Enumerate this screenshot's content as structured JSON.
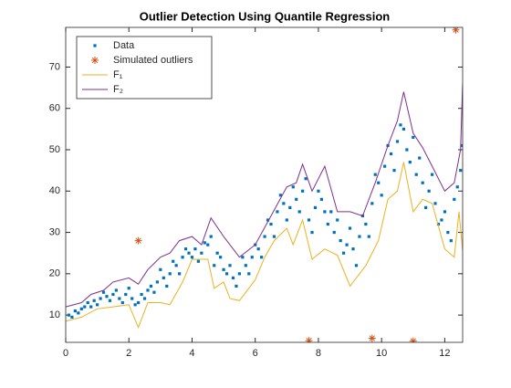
{
  "chart_data": {
    "type": "scatter",
    "title": "Outlier Detection Using Quantile Regression",
    "xlim": [
      0,
      12.566
    ],
    "ylim": [
      3.4,
      79.6
    ],
    "xticks": [
      0,
      2,
      4,
      6,
      8,
      10,
      12
    ],
    "yticks": [
      10,
      20,
      30,
      40,
      50,
      60,
      70
    ],
    "grid": false,
    "legend": "northwest",
    "series": [
      {
        "name": "Data",
        "mode": "marker",
        "marker": "square",
        "color": "#0072bd",
        "x": [
          0.1,
          0.3,
          0.5,
          0.7,
          0.9,
          1.1,
          1.3,
          1.5,
          1.7,
          1.9,
          2.1,
          2.3,
          2.5,
          2.7,
          2.9,
          3.1,
          3.3,
          3.5,
          3.7,
          3.9,
          4.1,
          4.3,
          4.5,
          4.7,
          4.9,
          5.1,
          5.3,
          5.5,
          5.7,
          5.9,
          6.1,
          6.3,
          6.5,
          6.7,
          6.9,
          7.1,
          7.3,
          7.5,
          7.7,
          7.9,
          8.1,
          8.3,
          8.5,
          8.7,
          8.9,
          9.1,
          9.3,
          9.5,
          9.7,
          9.9,
          10.1,
          10.3,
          10.5,
          10.7,
          10.9,
          11.1,
          11.3,
          11.5,
          11.7,
          11.9,
          12.1,
          12.3,
          12.5,
          0.2,
          0.4,
          0.6,
          0.8,
          1.0,
          1.2,
          1.4,
          1.6,
          1.8,
          2.0,
          2.2,
          2.4,
          2.6,
          2.8,
          3.0,
          3.2,
          3.4,
          3.6,
          3.8,
          4.0,
          4.2,
          4.4,
          4.6,
          4.8,
          5.0,
          5.2,
          5.4,
          5.6,
          5.8,
          6.0,
          6.2,
          6.4,
          6.6,
          6.8,
          7.0,
          7.2,
          7.4,
          7.6,
          7.8,
          8.0,
          8.2,
          8.4,
          8.6,
          8.8,
          9.0,
          9.2,
          9.4,
          9.6,
          9.8,
          10.0,
          10.2,
          10.4,
          10.6,
          10.8,
          11.0,
          11.2,
          11.4,
          11.6,
          11.8,
          12.0,
          12.2,
          12.4,
          12.55
        ],
        "values": [
          10,
          11,
          11.5,
          13,
          13.5,
          14,
          14.5,
          15,
          14,
          15,
          14,
          13,
          14,
          17,
          18,
          19,
          20,
          22,
          24,
          25,
          26,
          25,
          27,
          22,
          24,
          20,
          19,
          20,
          22,
          24,
          26,
          29,
          32,
          35,
          37,
          36,
          38,
          40,
          33,
          36,
          38,
          32,
          30,
          28,
          27,
          26,
          29,
          32,
          37,
          42,
          46,
          49,
          52,
          55,
          47,
          44,
          42,
          40,
          37,
          33,
          30,
          38,
          45,
          9.5,
          10.5,
          12,
          12,
          12.5,
          15.5,
          13.5,
          16,
          13,
          16.5,
          12.5,
          15,
          16,
          15.5,
          21,
          17,
          23,
          20,
          26,
          24,
          23,
          27.5,
          29,
          25,
          21,
          22,
          17,
          24,
          20,
          27,
          24,
          33,
          29,
          39,
          33,
          41,
          35,
          43,
          30,
          40,
          35,
          35,
          33,
          25,
          31,
          22,
          34,
          29,
          44,
          39,
          51,
          45,
          56,
          50,
          53,
          48,
          36,
          44,
          32,
          35,
          28,
          41,
          51
        ]
      },
      {
        "name": "Simulated outliers",
        "mode": "marker",
        "marker": "asterisk",
        "color": "#d95319",
        "x": [
          2.3,
          7.7,
          9.7,
          11.0,
          12.35
        ],
        "values": [
          28,
          3.8,
          4.4,
          3.7,
          79
        ]
      },
      {
        "name": "F₁",
        "mode": "line",
        "color": "#edb120",
        "x": [
          0,
          0.5,
          1,
          1.5,
          2,
          2.3,
          2.6,
          3,
          3.3,
          3.7,
          4,
          4.5,
          4.7,
          5,
          5.2,
          5.5,
          6,
          6.3,
          6.6,
          7,
          7.2,
          7.5,
          7.8,
          8.2,
          8.6,
          9,
          9.5,
          9.9,
          10.2,
          10.5,
          10.7,
          11,
          11.3,
          11.6,
          12,
          12.3,
          12.45,
          12.566
        ],
        "values": [
          8.5,
          9.5,
          11.5,
          12,
          12.5,
          7,
          13,
          13,
          12.5,
          18,
          23.5,
          23.5,
          16.5,
          18,
          14,
          13.5,
          18.5,
          24,
          28,
          31,
          27,
          33,
          23.5,
          26,
          24.5,
          17,
          22,
          28,
          38,
          40,
          47,
          35,
          38,
          37,
          26,
          24,
          35,
          25.5
        ]
      },
      {
        "name": "F₂",
        "mode": "line",
        "color": "#7e2f8e",
        "x": [
          0,
          0.5,
          0.8,
          1.2,
          1.5,
          2,
          2.3,
          2.6,
          3,
          3.3,
          3.6,
          4,
          4.3,
          4.6,
          5,
          5.3,
          5.5,
          6,
          6.5,
          7,
          7.3,
          7.5,
          7.8,
          8.2,
          8.6,
          9,
          9.4,
          9.8,
          10.2,
          10.5,
          10.7,
          11,
          11.3,
          11.6,
          12,
          12.3,
          12.5,
          12.566
        ],
        "values": [
          12,
          13,
          15,
          16,
          18,
          19,
          17.5,
          21,
          24,
          25,
          28,
          29,
          27,
          33.5,
          29,
          26,
          24,
          27,
          34,
          41,
          42,
          46.5,
          40,
          46,
          35,
          35,
          34,
          42,
          51,
          57,
          64,
          54,
          50.5,
          46,
          40,
          42,
          50,
          66
        ]
      }
    ]
  }
}
